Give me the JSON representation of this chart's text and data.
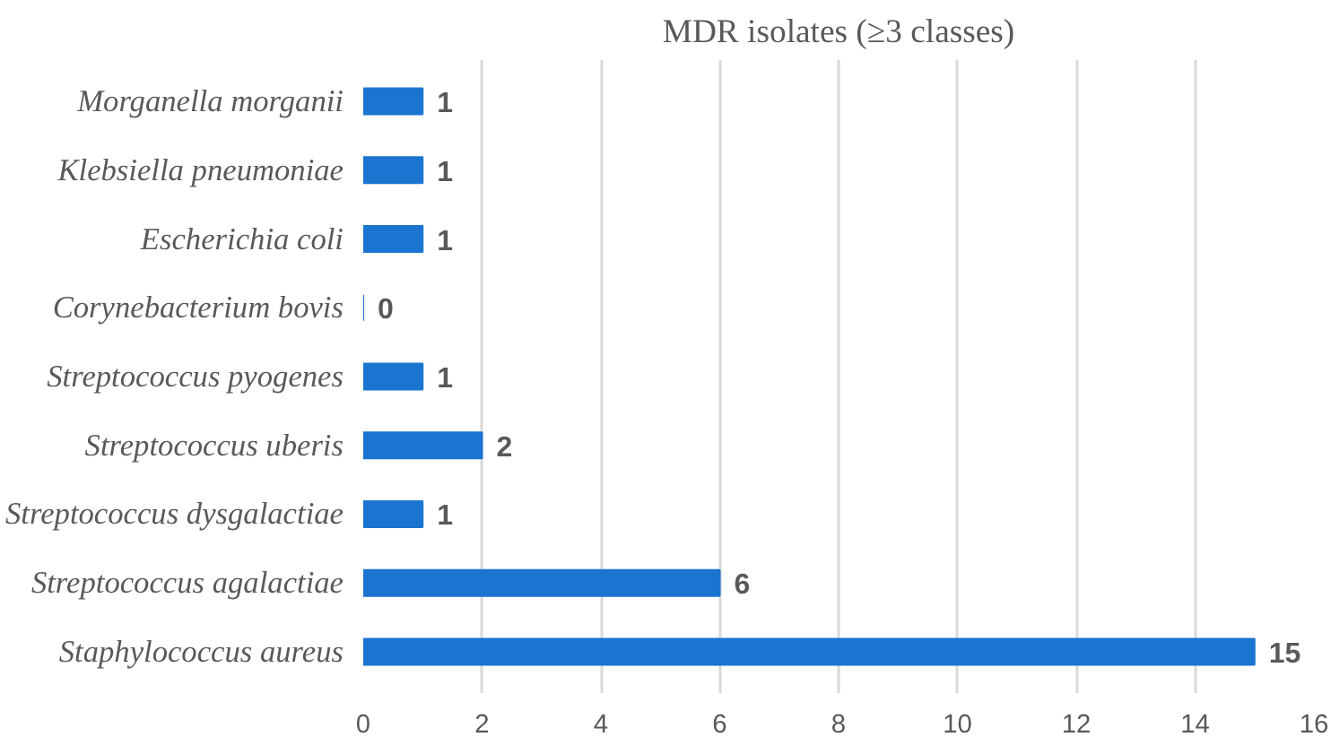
{
  "chart_data": {
    "type": "bar",
    "orientation": "horizontal",
    "title": "MDR isolates (≥3 classes)",
    "categories": [
      "Morganella morganii",
      "Klebsiella pneumoniae",
      "Escherichia coli",
      "Corynebacterium bovis",
      "Streptococcus pyogenes",
      "Streptococcus uberis",
      "Streptococcus dysgalactiae",
      "Streptococcus agalactiae",
      "Staphylococcus aureus"
    ],
    "values": [
      1,
      1,
      1,
      0,
      1,
      2,
      1,
      6,
      15
    ],
    "color": "#1b75d0",
    "xlim": [
      0,
      16
    ],
    "xticks": [
      0,
      2,
      4,
      6,
      8,
      10,
      12,
      14,
      16
    ],
    "grid": "x",
    "data_labels": true
  }
}
